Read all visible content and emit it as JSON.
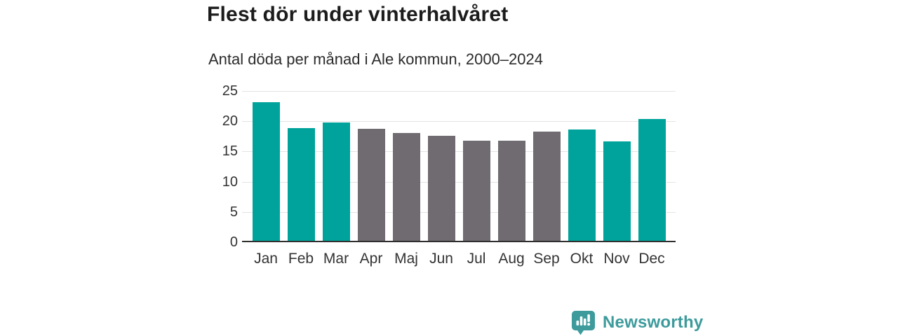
{
  "header": {
    "title": "Flest dör under vinterhalvåret",
    "subtitle": "Antal döda per månad i Ale kommun, 2000–2024"
  },
  "chart_data": {
    "type": "bar",
    "title": "Flest dör under vinterhalvåret",
    "subtitle": "Antal döda per månad i Ale kommun, 2000–2024",
    "categories": [
      "Jan",
      "Feb",
      "Mar",
      "Apr",
      "Maj",
      "Jun",
      "Jul",
      "Aug",
      "Sep",
      "Okt",
      "Nov",
      "Dec"
    ],
    "values": [
      22.9,
      18.6,
      19.6,
      18.5,
      17.8,
      17.4,
      16.6,
      16.6,
      18.1,
      18.4,
      16.4,
      20.1
    ],
    "bar_colors": [
      "#00A39B",
      "#00A39B",
      "#00A39B",
      "#6F6B70",
      "#6F6B70",
      "#6F6B70",
      "#6F6B70",
      "#6F6B70",
      "#6F6B70",
      "#00A39B",
      "#00A39B",
      "#00A39B"
    ],
    "highlight_color": "#00A39B",
    "muted_color": "#6F6B70",
    "xlabel": "",
    "ylabel": "",
    "ylim": [
      0,
      25
    ],
    "yticks": [
      0,
      5,
      10,
      15,
      20,
      25
    ],
    "grid": true,
    "legend": false
  },
  "branding": {
    "logo_text": "Newsworthy",
    "logo_color": "#3D9B9C",
    "logo_icon": "bar-chart-speech-bubble"
  },
  "colors": {
    "background": "#FFFFFF",
    "title_text": "#1C1C1C",
    "subtitle_text": "#2B2B2B",
    "tick_text": "#333333",
    "gridline": "#E3E3E3",
    "axis_line": "#2F2F2F"
  }
}
